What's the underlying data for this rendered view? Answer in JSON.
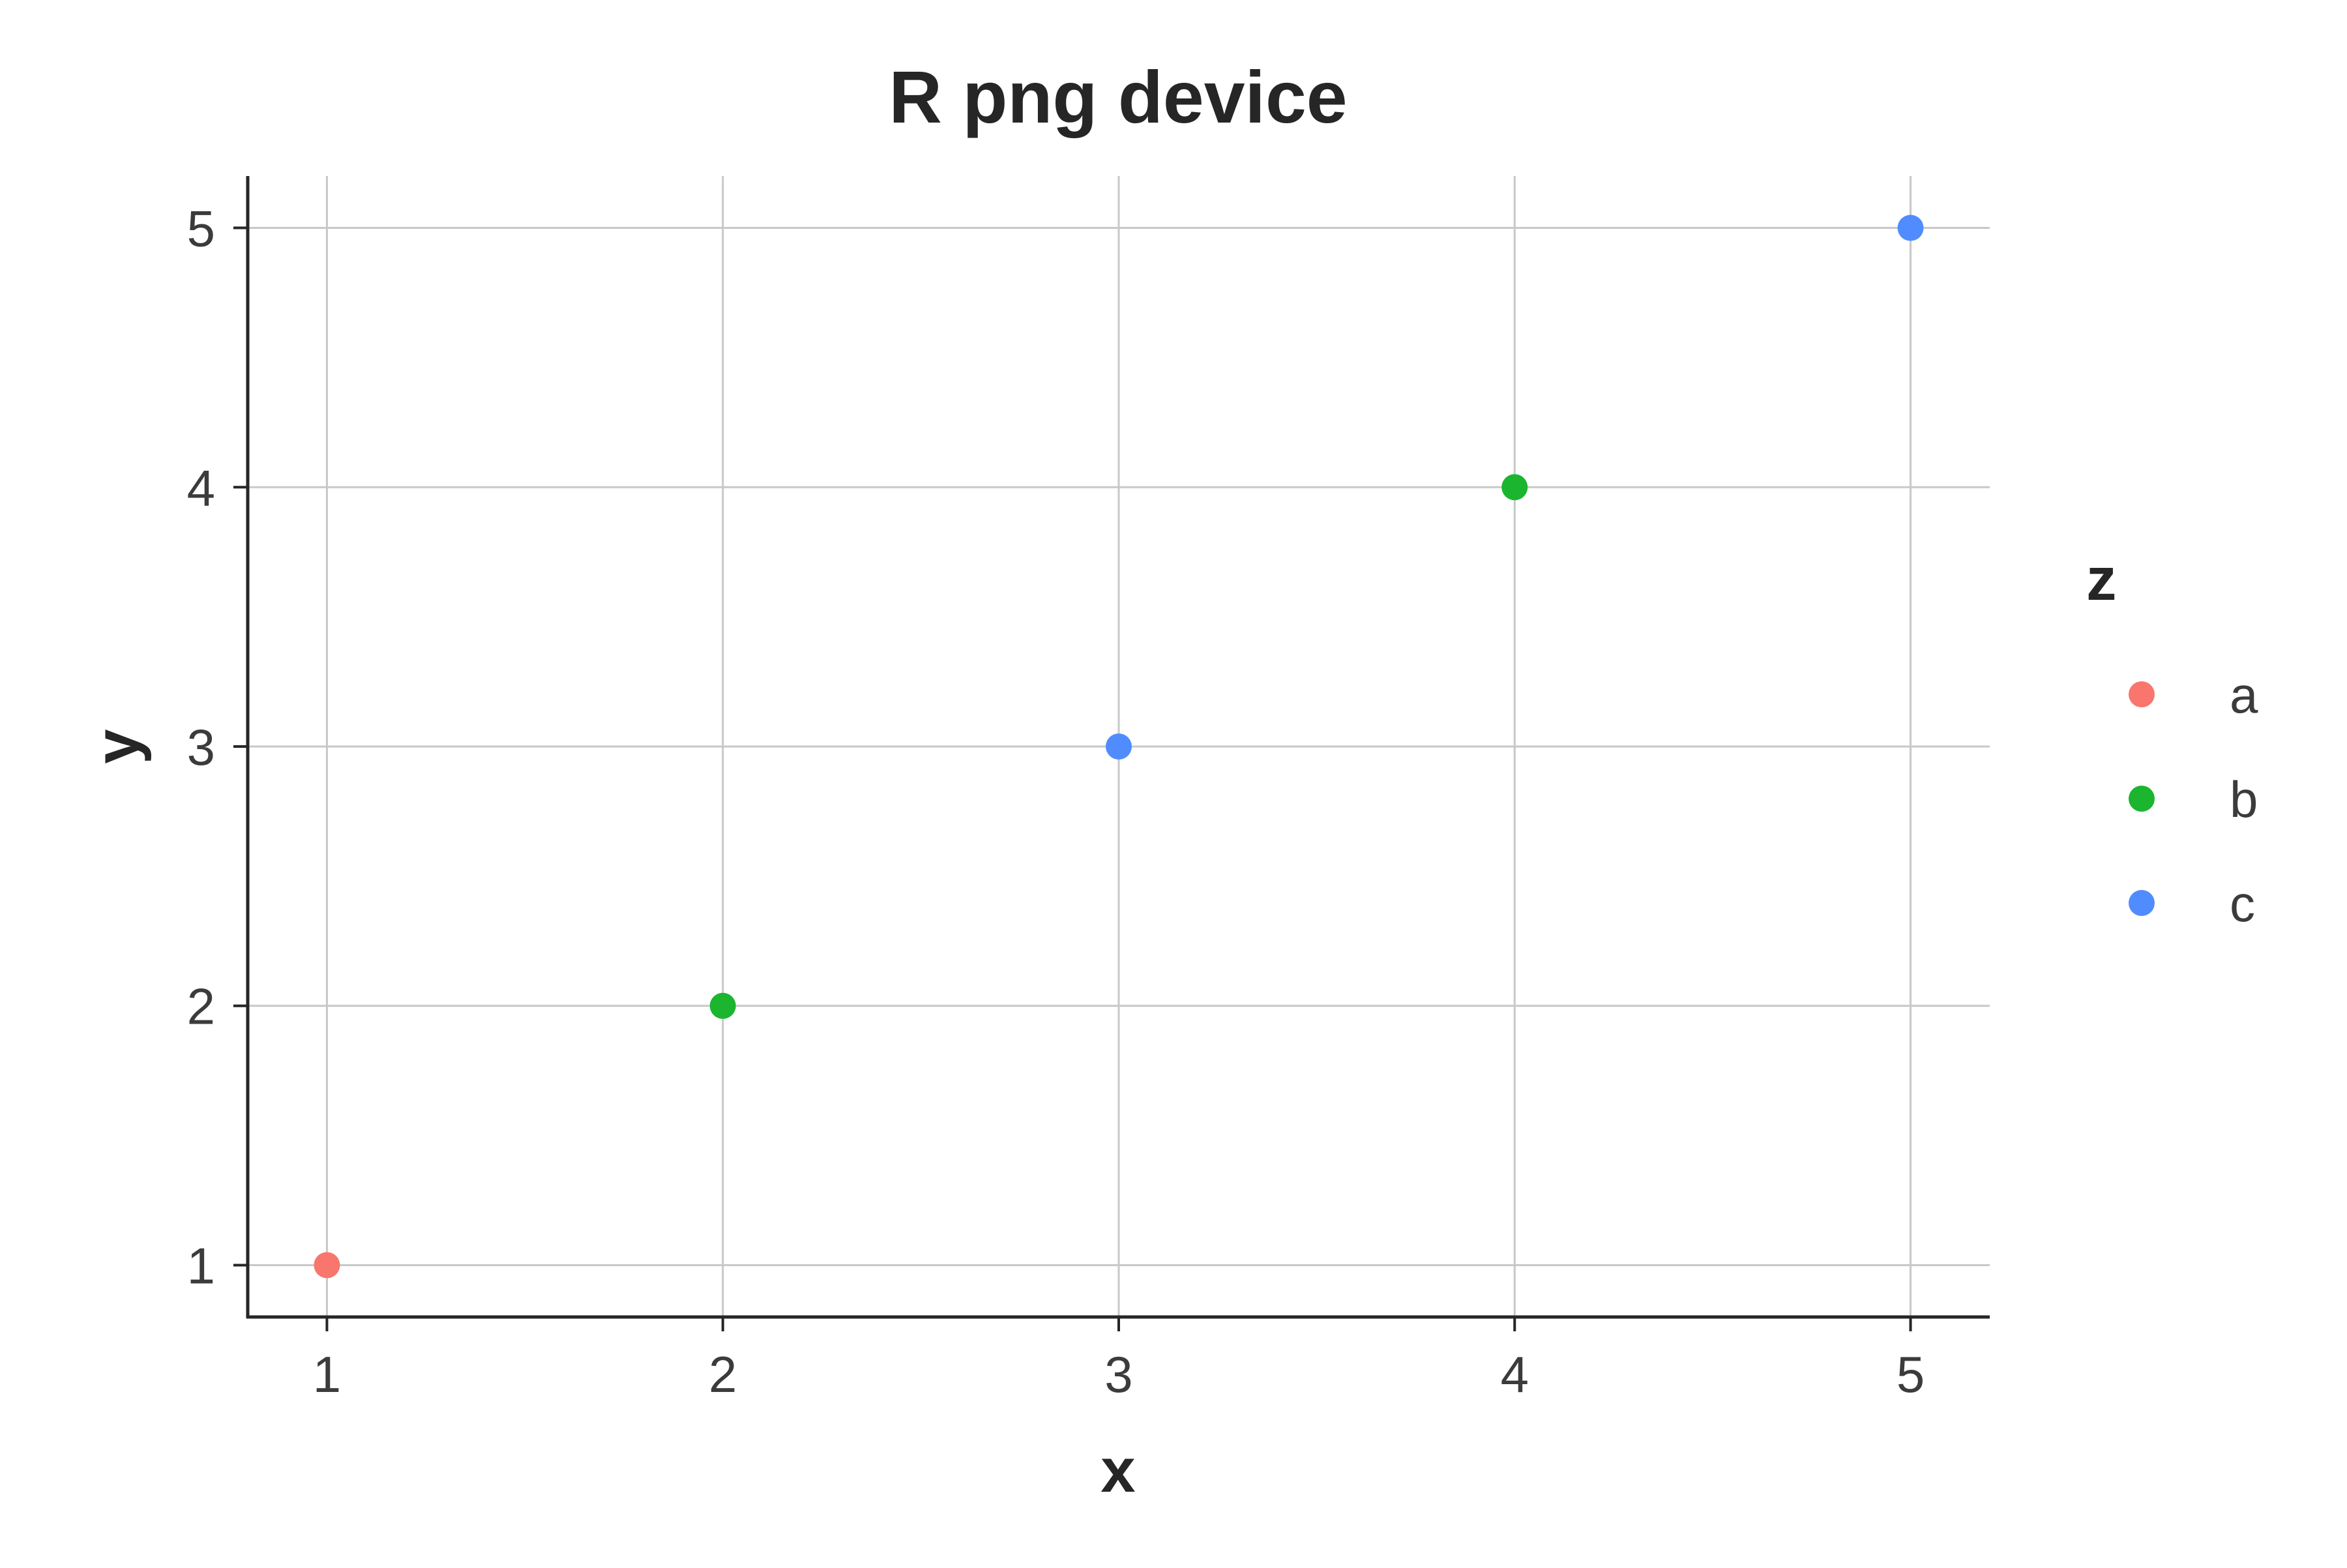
{
  "chart_data": {
    "type": "scatter",
    "title": "R png device",
    "xlabel": "x",
    "ylabel": "y",
    "xlim": [
      0.8,
      5.2
    ],
    "ylim": [
      0.8,
      5.2
    ],
    "x_ticks": [
      1,
      2,
      3,
      4,
      5
    ],
    "y_ticks": [
      1,
      2,
      3,
      4,
      5
    ],
    "grid": true,
    "points": [
      {
        "x": 1,
        "y": 1,
        "z": "a"
      },
      {
        "x": 2,
        "y": 2,
        "z": "b"
      },
      {
        "x": 3,
        "y": 3,
        "z": "c"
      },
      {
        "x": 4,
        "y": 4,
        "z": "b"
      },
      {
        "x": 5,
        "y": 5,
        "z": "c"
      }
    ],
    "legend": {
      "title": "z",
      "position": "right",
      "entries": [
        {
          "label": "a",
          "color": "#F8766D"
        },
        {
          "label": "b",
          "color": "#1BB52F"
        },
        {
          "label": "c",
          "color": "#518CFF"
        }
      ]
    }
  }
}
